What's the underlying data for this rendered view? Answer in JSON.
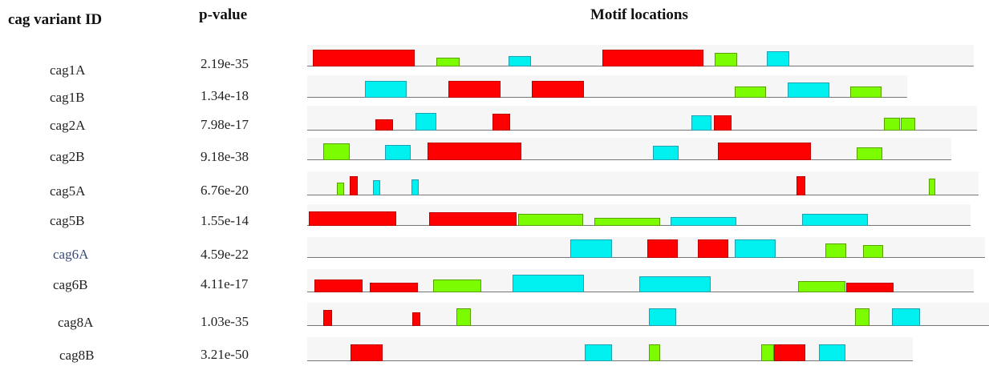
{
  "headers": {
    "id": "cag variant ID",
    "pvalue": "p-value",
    "motifs": "Motif locations"
  },
  "colors": {
    "red": "#ff0000",
    "green": "#7cfc00",
    "cyan": "#00f0f0",
    "baseline": "#777777"
  },
  "rows": [
    {
      "id": "cag1A",
      "pvalue": "2.19e-35",
      "label_color": "#222222"
    },
    {
      "id": "cag1B",
      "pvalue": "1.34e-18",
      "label_color": "#222222"
    },
    {
      "id": "cag2A",
      "pvalue": "7.98e-17",
      "label_color": "#222222"
    },
    {
      "id": "cag2B",
      "pvalue": "9.18e-38",
      "label_color": "#222222"
    },
    {
      "id": "cag5A",
      "pvalue": "6.76e-20",
      "label_color": "#222222"
    },
    {
      "id": "cag5B",
      "pvalue": "1.55e-14",
      "label_color": "#222222"
    },
    {
      "id": "cag6A",
      "pvalue": "4.59e-22",
      "label_color": "#3a4a7a"
    },
    {
      "id": "cag6B",
      "pvalue": "4.11e-17",
      "label_color": "#222222"
    },
    {
      "id": "cag8A",
      "pvalue": "1.03e-35",
      "label_color": "#222222"
    },
    {
      "id": "cag8B",
      "pvalue": "3.21e-50",
      "label_color": "#222222"
    }
  ],
  "motif_color_sequence": [
    [
      "red",
      "green",
      "cyan",
      "red",
      "green",
      "cyan"
    ],
    [
      "cyan",
      "red",
      "red",
      "green",
      "cyan",
      "green"
    ],
    [
      "red",
      "cyan",
      "red",
      "cyan",
      "red",
      "green",
      "green"
    ],
    [
      "green",
      "cyan",
      "red",
      "cyan",
      "red",
      "green"
    ],
    [
      "green",
      "red",
      "cyan",
      "cyan",
      "red",
      "green"
    ],
    [
      "red",
      "red",
      "green",
      "green",
      "cyan",
      "cyan"
    ],
    [
      "cyan",
      "red",
      "red",
      "cyan",
      "green",
      "green"
    ],
    [
      "red",
      "red",
      "green",
      "cyan",
      "cyan",
      "green",
      "red"
    ],
    [
      "red",
      "red",
      "green",
      "cyan",
      "green",
      "cyan"
    ],
    [
      "red",
      "cyan",
      "green",
      "green",
      "red",
      "cyan"
    ]
  ]
}
